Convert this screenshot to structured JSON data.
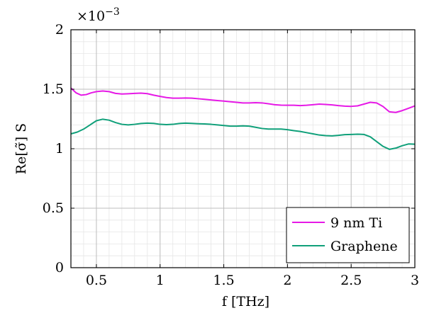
{
  "chart_data": {
    "type": "line",
    "xlabel": "f [THz]",
    "ylabel": "Re[σ̃] S",
    "y_multiplier": "×10−3",
    "xlim": [
      0.3,
      3.0
    ],
    "ylim": [
      0,
      2
    ],
    "x_ticks": [
      0.5,
      1,
      1.5,
      2,
      2.5,
      3
    ],
    "x_tick_labels": [
      "0.5",
      "1",
      "1.5",
      "2",
      "2.5",
      "3"
    ],
    "y_ticks": [
      0,
      0.5,
      1,
      1.5,
      2
    ],
    "y_tick_labels": [
      "0",
      "0.5",
      "1",
      "1.5",
      "2"
    ],
    "grid": true,
    "legend_position": "bottom-right",
    "series": [
      {
        "name": "9 nm Ti",
        "color": "#e619e6",
        "x": [
          0.3,
          0.34,
          0.38,
          0.42,
          0.46,
          0.5,
          0.55,
          0.6,
          0.65,
          0.7,
          0.75,
          0.8,
          0.85,
          0.9,
          0.95,
          1.0,
          1.05,
          1.1,
          1.15,
          1.2,
          1.25,
          1.3,
          1.35,
          1.4,
          1.45,
          1.5,
          1.55,
          1.6,
          1.65,
          1.7,
          1.75,
          1.8,
          1.85,
          1.9,
          1.95,
          2.0,
          2.05,
          2.1,
          2.15,
          2.2,
          2.25,
          2.3,
          2.35,
          2.4,
          2.45,
          2.5,
          2.55,
          2.6,
          2.65,
          2.7,
          2.75,
          2.8,
          2.85,
          2.9,
          2.95,
          3.0
        ],
        "y": [
          1.51,
          1.47,
          1.45,
          1.455,
          1.47,
          1.48,
          1.485,
          1.48,
          1.465,
          1.46,
          1.462,
          1.465,
          1.467,
          1.463,
          1.45,
          1.44,
          1.43,
          1.425,
          1.425,
          1.426,
          1.425,
          1.42,
          1.415,
          1.41,
          1.405,
          1.4,
          1.395,
          1.39,
          1.385,
          1.385,
          1.387,
          1.385,
          1.378,
          1.37,
          1.366,
          1.365,
          1.365,
          1.362,
          1.365,
          1.37,
          1.375,
          1.372,
          1.368,
          1.362,
          1.358,
          1.356,
          1.36,
          1.375,
          1.39,
          1.385,
          1.355,
          1.31,
          1.305,
          1.32,
          1.34,
          1.36
        ]
      },
      {
        "name": "Graphene",
        "color": "#10a07a",
        "x": [
          0.3,
          0.35,
          0.4,
          0.45,
          0.5,
          0.55,
          0.6,
          0.65,
          0.7,
          0.75,
          0.8,
          0.85,
          0.9,
          0.95,
          1.0,
          1.05,
          1.1,
          1.15,
          1.2,
          1.25,
          1.3,
          1.35,
          1.4,
          1.45,
          1.5,
          1.55,
          1.6,
          1.65,
          1.7,
          1.75,
          1.8,
          1.85,
          1.9,
          1.95,
          2.0,
          2.05,
          2.1,
          2.15,
          2.2,
          2.25,
          2.3,
          2.35,
          2.4,
          2.45,
          2.5,
          2.55,
          2.6,
          2.65,
          2.7,
          2.75,
          2.8,
          2.85,
          2.9,
          2.95,
          3.0
        ],
        "y": [
          1.125,
          1.14,
          1.165,
          1.2,
          1.235,
          1.248,
          1.24,
          1.22,
          1.205,
          1.2,
          1.205,
          1.212,
          1.215,
          1.213,
          1.205,
          1.202,
          1.205,
          1.212,
          1.215,
          1.213,
          1.21,
          1.208,
          1.205,
          1.2,
          1.195,
          1.19,
          1.19,
          1.192,
          1.19,
          1.18,
          1.17,
          1.165,
          1.165,
          1.165,
          1.16,
          1.152,
          1.145,
          1.135,
          1.125,
          1.115,
          1.11,
          1.108,
          1.112,
          1.118,
          1.12,
          1.122,
          1.12,
          1.1,
          1.06,
          1.02,
          0.995,
          1.005,
          1.025,
          1.04,
          1.038
        ]
      }
    ]
  }
}
